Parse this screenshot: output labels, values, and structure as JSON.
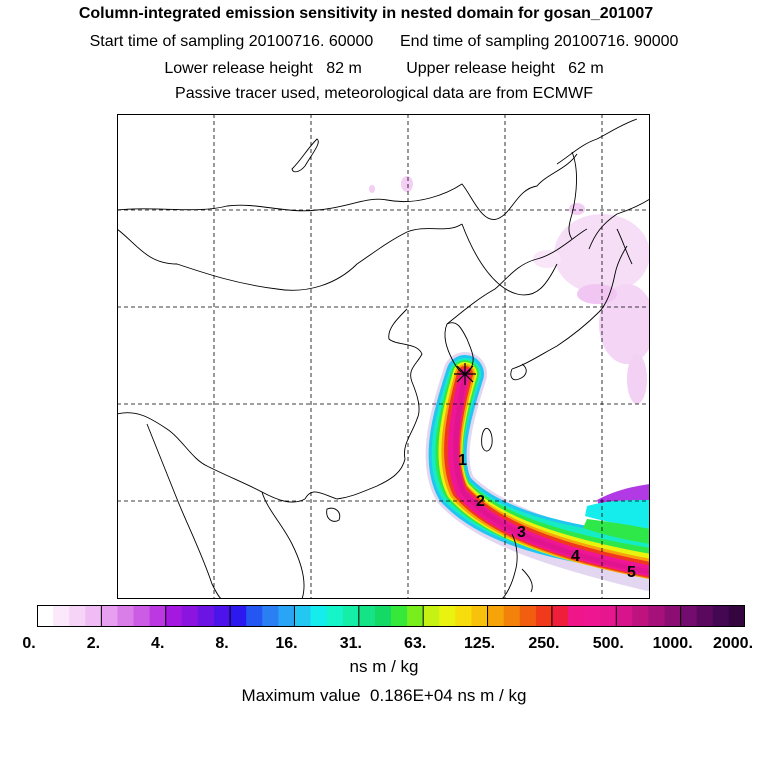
{
  "header": {
    "title": "Column-integrated emission sensitivity in nested domain for gosan_201007",
    "sampling": "Start time of sampling 20100716. 60000      End time of sampling 20100716. 90000",
    "release": "Lower release height   82 m          Upper release height   62 m",
    "tracer": "Passive tracer used, meteorological data are from ECMWF"
  },
  "map": {
    "release_site_marker": "star",
    "day_labels": [
      "1",
      "2",
      "3",
      "4",
      "5"
    ]
  },
  "colorbar": {
    "tick_labels": [
      "0.",
      "2.",
      "4.",
      "8.",
      "16.",
      "31.",
      "63.",
      "125.",
      "250.",
      "500.",
      "1000.",
      "2000."
    ],
    "colors": [
      "#ffffff",
      "#fbe9fb",
      "#f5d4f7",
      "#efbcf3",
      "#e7a0ef",
      "#d97ee9",
      "#cc5ce6",
      "#bb38e2",
      "#a418df",
      "#8b14df",
      "#6c14e4",
      "#4c14ea",
      "#2d18f0",
      "#2456f2",
      "#2a7ff3",
      "#2aa4f4",
      "#22c8f2",
      "#15ecec",
      "#15f5c9",
      "#15eea7",
      "#15e486",
      "#15d965",
      "#35e83a",
      "#78ee1c",
      "#c5f212",
      "#eaf30f",
      "#f7dd0c",
      "#f8c10b",
      "#f6a40a",
      "#f3820a",
      "#f25e0f",
      "#f13a1c",
      "#ef1e3a",
      "#ef168a",
      "#ef1691",
      "#e6168f",
      "#d8148c",
      "#be127e",
      "#a6107a",
      "#8c0e73",
      "#740b6e",
      "#5a095f",
      "#440752",
      "#34053f"
    ],
    "units": "ns m / kg"
  },
  "footer": {
    "max_value": "Maximum value  0.186E+04 ns m / kg"
  }
}
